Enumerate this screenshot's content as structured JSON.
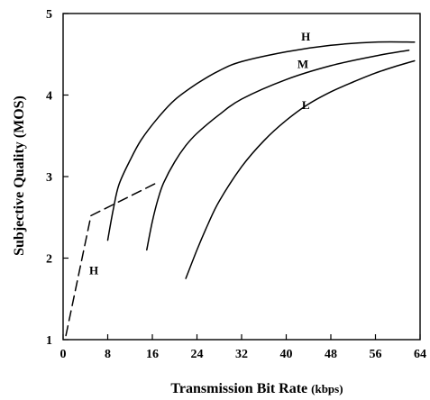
{
  "chart_data": {
    "type": "line",
    "title": "",
    "xlabel": "Transmission Bit Rate",
    "xlabel_unit": "(kbps)",
    "ylabel": "Subjective Quality (MOS)",
    "xlim": [
      0,
      64
    ],
    "ylim": [
      1,
      5
    ],
    "x_ticks": [
      0,
      8,
      16,
      24,
      32,
      40,
      48,
      56,
      64
    ],
    "x_tick_labels": [
      "0",
      "8",
      "16",
      "24",
      "32",
      "40",
      "48",
      "56",
      "64"
    ],
    "y_ticks": [
      1,
      2,
      3,
      4,
      5
    ],
    "y_tick_labels": [
      "1",
      "2",
      "3",
      "4",
      "5"
    ],
    "grid": false,
    "series": [
      {
        "name": "H",
        "style": "solid",
        "x": [
          8,
          9,
          10,
          12,
          14,
          17,
          20,
          24,
          28,
          32,
          40,
          48,
          56,
          63
        ],
        "y": [
          2.22,
          2.6,
          2.9,
          3.2,
          3.45,
          3.72,
          3.94,
          4.14,
          4.3,
          4.41,
          4.53,
          4.61,
          4.65,
          4.65
        ]
      },
      {
        "name": "M",
        "style": "solid",
        "x": [
          15,
          16,
          17,
          18,
          20,
          22,
          24,
          28,
          32,
          40,
          48,
          56,
          62
        ],
        "y": [
          2.1,
          2.45,
          2.72,
          2.92,
          3.18,
          3.38,
          3.53,
          3.76,
          3.95,
          4.19,
          4.36,
          4.48,
          4.55
        ]
      },
      {
        "name": "L",
        "style": "solid",
        "x": [
          22,
          24,
          26,
          28,
          32,
          36,
          40,
          44,
          48,
          52,
          56,
          60,
          63
        ],
        "y": [
          1.75,
          2.1,
          2.42,
          2.7,
          3.12,
          3.44,
          3.69,
          3.89,
          4.04,
          4.16,
          4.27,
          4.36,
          4.42
        ]
      },
      {
        "name": "H",
        "style": "dashed",
        "x": [
          0.5,
          5,
          17
        ],
        "y": [
          1.05,
          2.52,
          2.93
        ]
      }
    ],
    "curve_labels": [
      {
        "text": "H",
        "x": 43.5,
        "y": 4.67
      },
      {
        "text": "M",
        "x": 43,
        "y": 4.33
      },
      {
        "text": "L",
        "x": 43.5,
        "y": 3.83
      },
      {
        "text": "H",
        "x": 5.5,
        "y": 1.8
      }
    ]
  }
}
